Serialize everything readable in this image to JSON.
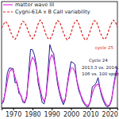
{
  "chart_data": {
    "type": "line",
    "x": [
      1964,
      1965,
      1966,
      1967,
      1968,
      1969,
      1970,
      1971,
      1972,
      1973,
      1974,
      1975,
      1976,
      1977,
      1978,
      1979,
      1980,
      1981,
      1982,
      1983,
      1984,
      1985,
      1986,
      1987,
      1988,
      1989,
      1990,
      1991,
      1992,
      1993,
      1994,
      1995,
      1996,
      1997,
      1998,
      1999,
      2000,
      2001,
      2002,
      2003,
      2004,
      2005,
      2006,
      2007,
      2008,
      2009,
      2010,
      2011,
      2012,
      2013,
      2014,
      2015,
      2016,
      2017,
      2018,
      2019,
      2020,
      2021,
      2022,
      2023,
      2024
    ],
    "series": [
      {
        "name": "matter wave III",
        "color": "#e030e0",
        "line_style": "solid",
        "values": [
          20,
          30,
          60,
          100,
          135,
          145,
          140,
          115,
          90,
          65,
          45,
          28,
          22,
          45,
          110,
          170,
          190,
          180,
          150,
          110,
          70,
          40,
          25,
          45,
          110,
          180,
          200,
          185,
          150,
          105,
          65,
          38,
          22,
          35,
          80,
          125,
          150,
          150,
          135,
          105,
          75,
          50,
          32,
          18,
          10,
          10,
          25,
          55,
          75,
          85,
          90,
          75,
          50,
          30,
          15,
          8,
          12,
          35,
          75,
          115,
          140
        ]
      },
      {
        "name": "Cygni-61A x B CaII variability",
        "color": "#e02020",
        "line_style": "dashed",
        "values": [
          300,
          315,
          325,
          318,
          300,
          280,
          265,
          258,
          270,
          290,
          312,
          326,
          322,
          305,
          285,
          268,
          260,
          272,
          295,
          318,
          330,
          320,
          298,
          276,
          262,
          258,
          270,
          292,
          315,
          328,
          324,
          306,
          284,
          266,
          256,
          262,
          282,
          306,
          324,
          330,
          316,
          294,
          272,
          258,
          256,
          270,
          292,
          314,
          328,
          326,
          308,
          286,
          268,
          258,
          262,
          280,
          302,
          320,
          330,
          322,
          305
        ]
      },
      {
        "color": "#1a1a8c",
        "line_style": "solid",
        "values": [
          15,
          22,
          66,
          132,
          150,
          149,
          148,
          94,
          97,
          54,
          49,
          22,
          18,
          39,
          131,
          220,
          219,
          199,
          162,
          91,
          60,
          21,
          15,
          47,
          137,
          238,
          215,
          204,
          146,
          90,
          56,
          29,
          12,
          30,
          88,
          136,
          174,
          170,
          164,
          100,
          65,
          46,
          25,
          13,
          4,
          5,
          25,
          80,
          84,
          94,
          114,
          70,
          40,
          22,
          7,
          4,
          9,
          29,
          83,
          126,
          155
        ]
      }
    ],
    "xlim": [
      1964,
      2024
    ],
    "xticks": [
      1970,
      1980,
      1990,
      2000,
      2010,
      2020
    ],
    "ylim": [
      0,
      400
    ],
    "tick_labels": "x",
    "legend": "upper-left",
    "annotations": [
      {
        "text": "cycle 25",
        "color": "#e02020"
      },
      {
        "text": "Cycle 24",
        "color": "#1a1a3c"
      },
      {
        "text": "2013.3 vs. 2014.3",
        "color": "#1a1a3c"
      },
      {
        "text": "106 vs. 100 spots",
        "color": "#1a1a3c"
      }
    ]
  }
}
